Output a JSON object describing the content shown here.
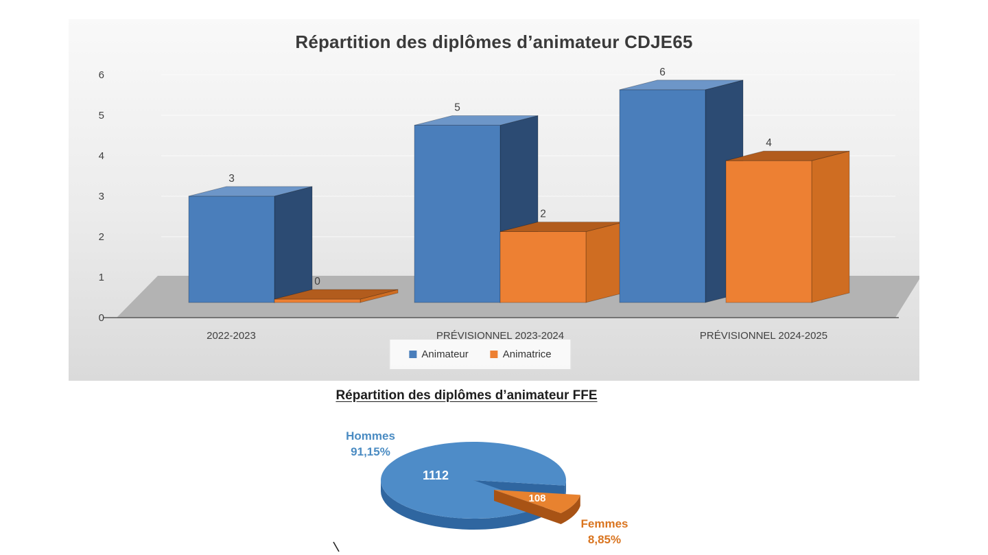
{
  "chart_data": [
    {
      "type": "bar",
      "style": "3d-clustered-column",
      "title": "Répartition des diplômes d’animateur CDJE65",
      "categories": [
        "2022-2023",
        "PRÉVISIONNEL 2023-2024",
        "PRÉVISIONNEL 2024-2025"
      ],
      "series": [
        {
          "name": "Animateur",
          "values": [
            3,
            5,
            6
          ],
          "color": "#4a7ebb",
          "top_color": "#6d96c8",
          "side_color": "#2c4b73"
        },
        {
          "name": "Animatrice",
          "values": [
            0,
            2,
            4
          ],
          "color": "#ed8033",
          "top_color": "#b25c1d",
          "side_color": "#cf6d22"
        }
      ],
      "data_labels": true,
      "ylim": [
        0,
        6
      ],
      "y_ticks": [
        0,
        1,
        2,
        3,
        4,
        5,
        6
      ],
      "grid": true,
      "legend_position": "bottom",
      "panel_background": "#ebebeb",
      "floor_color": "#b3b3b3",
      "axis_color": "#595959",
      "label_color": "#3f3f3f"
    },
    {
      "type": "pie",
      "style": "3d-exploded",
      "title": "Répartition des diplômes d’animateur FFE",
      "slices": [
        {
          "label": "Hommes",
          "value": 1112,
          "pct_label": "91,15%",
          "color": "#4e8cc8",
          "side_color": "#2f66a0",
          "label_color": "#4a8bc2"
        },
        {
          "label": "Femmes",
          "value": 108,
          "pct_label": "8,85%",
          "color": "#e8822f",
          "side_color": "#a85315",
          "label_color": "#d9741f"
        }
      ],
      "data_labels": "values-inside-white",
      "legend_position": "none"
    }
  ]
}
